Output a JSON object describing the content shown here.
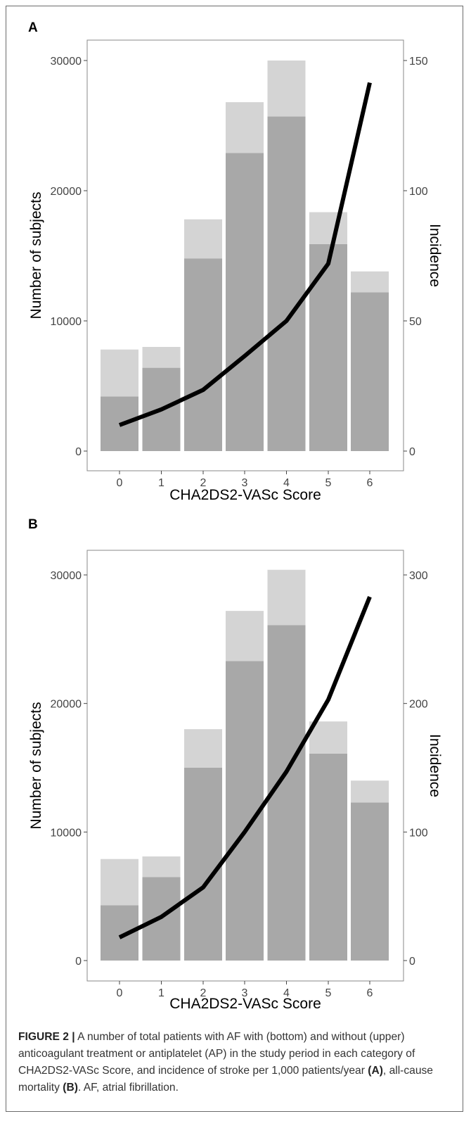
{
  "caption": {
    "figure_label": "FIGURE 2 |",
    "text_1": " A number of total patients with AF with (bottom) and without (upper) anticoagulant treatment or antiplatelet (AP) in the study period in each category of CHA2DS2-VASc Score, and incidence of stroke per 1,000 patients/year ",
    "ref_a": "(A)",
    "text_2": ", all-cause mortality ",
    "ref_b": "(B)",
    "text_3": ". AF, atrial fibrillation."
  },
  "colors": {
    "bar_bottom": "#a8a8a8",
    "bar_upper": "#d4d4d4",
    "line": "#000000",
    "panel_border": "#8a8a8a"
  },
  "chart_data": [
    {
      "panel": "A",
      "type": "bar",
      "categories": [
        "0",
        "1",
        "2",
        "3",
        "4",
        "5",
        "6"
      ],
      "stacked": true,
      "series": [
        {
          "name": "with (bottom)",
          "values": [
            4200,
            6400,
            14800,
            22900,
            25700,
            15900,
            12200
          ]
        },
        {
          "name": "without (upper)",
          "values": [
            3600,
            1600,
            3000,
            3900,
            4300,
            2450,
            1600
          ]
        }
      ],
      "line": {
        "axis": "secondary",
        "values": [
          10,
          16,
          23.5,
          36.5,
          50,
          72,
          141.5
        ]
      },
      "xlabel": "CHA2DS2-VASc Score",
      "ylabel": "Number of subjects",
      "y2label": "Incidence",
      "ylim": [
        0,
        32000
      ],
      "y2lim": [
        0,
        160
      ],
      "yticks": [
        0,
        10000,
        20000,
        30000
      ],
      "y2ticks": [
        0,
        50,
        100,
        150
      ]
    },
    {
      "panel": "B",
      "type": "bar",
      "categories": [
        "0",
        "1",
        "2",
        "3",
        "4",
        "5",
        "6"
      ],
      "stacked": true,
      "series": [
        {
          "name": "with (bottom)",
          "values": [
            4300,
            6500,
            15000,
            23300,
            26100,
            16100,
            12300
          ]
        },
        {
          "name": "without (upper)",
          "values": [
            3600,
            1600,
            3000,
            3900,
            4300,
            2500,
            1700
          ]
        }
      ],
      "line": {
        "axis": "secondary",
        "values": [
          18,
          34,
          57,
          100,
          147,
          203,
          283
        ]
      },
      "xlabel": "CHA2DS2-VASc Score",
      "ylabel": "Number of subjects",
      "y2label": "Incidence",
      "ylim": [
        0,
        32000
      ],
      "y2lim": [
        0,
        320
      ],
      "yticks": [
        0,
        10000,
        20000,
        30000
      ],
      "y2ticks": [
        0,
        100,
        200,
        300
      ]
    }
  ]
}
